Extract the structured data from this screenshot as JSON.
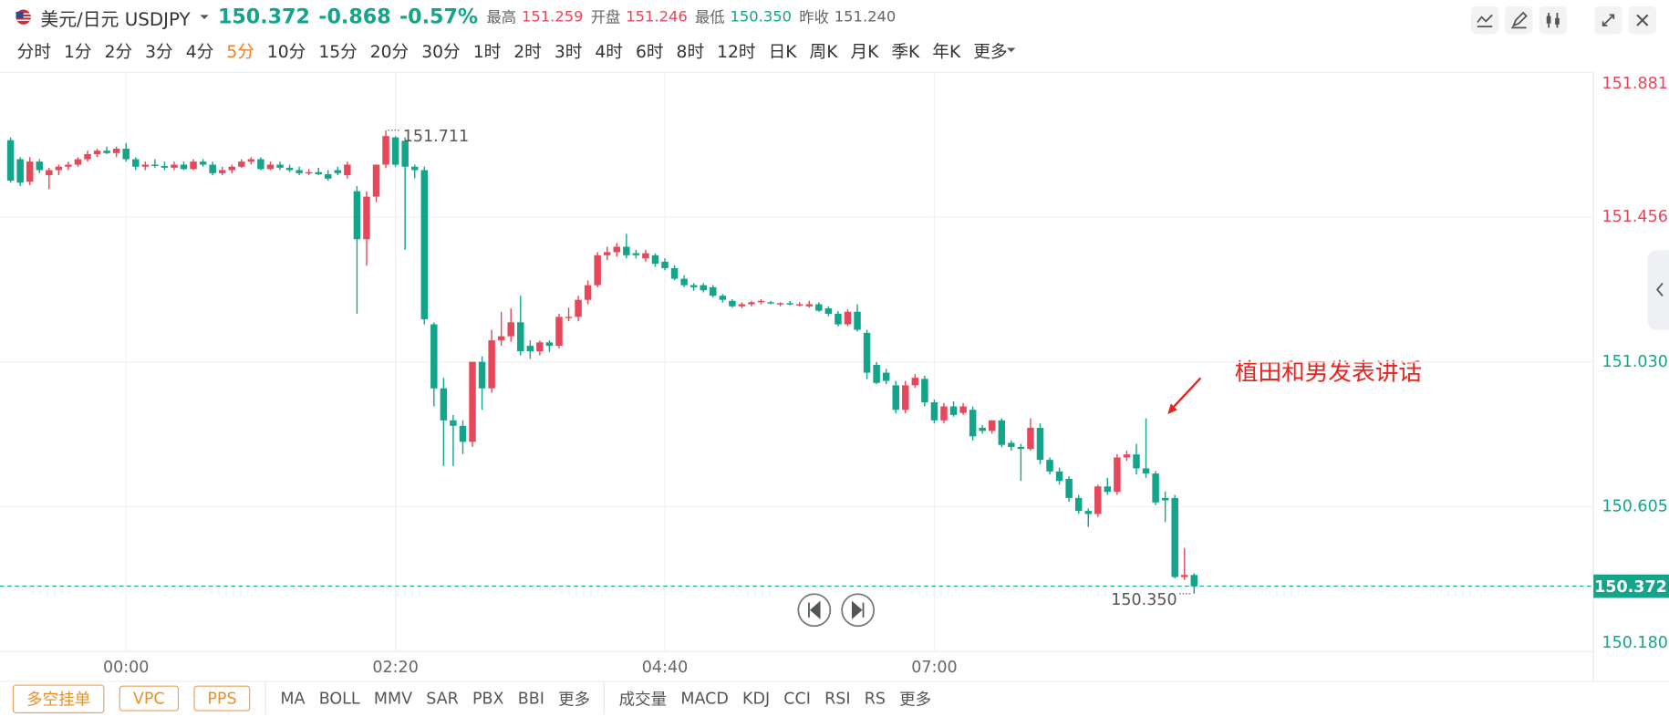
{
  "header": {
    "symbol": "美元/日元 USDJPY",
    "price": "150.372",
    "change": "-0.868",
    "change_pct": "-0.57%",
    "price_color": "#12a58a",
    "stats": [
      {
        "label": "最高",
        "value": "151.259",
        "color": "#e6475b"
      },
      {
        "label": "开盘",
        "value": "151.246",
        "color": "#e6475b"
      },
      {
        "label": "最低",
        "value": "150.350",
        "color": "#12a58a"
      },
      {
        "label": "昨收",
        "value": "151.240",
        "color": "#666666"
      }
    ]
  },
  "timeframes": [
    "分时",
    "1分",
    "2分",
    "3分",
    "4分",
    "5分",
    "10分",
    "15分",
    "20分",
    "30分",
    "1时",
    "2时",
    "3时",
    "4时",
    "6时",
    "8时",
    "12时",
    "日K",
    "周K",
    "月K",
    "季K",
    "年K",
    "更多"
  ],
  "active_timeframe": 5,
  "chart_data": {
    "type": "candlestick",
    "up_color": "#e6475b",
    "down_color": "#12a58a",
    "ohlc": [
      [
        151.682,
        151.69,
        151.557,
        151.563
      ],
      [
        151.626,
        151.632,
        151.547,
        151.557
      ],
      [
        151.56,
        151.632,
        151.55,
        151.619
      ],
      [
        151.619,
        151.626,
        151.585,
        151.594
      ],
      [
        151.579,
        151.601,
        151.538,
        151.594
      ],
      [
        151.594,
        151.61,
        151.579,
        151.604
      ],
      [
        151.604,
        151.619,
        151.594,
        151.61
      ],
      [
        151.61,
        151.632,
        151.604,
        151.626
      ],
      [
        151.626,
        151.651,
        151.619,
        151.641
      ],
      [
        151.641,
        151.657,
        151.632,
        151.651
      ],
      [
        151.651,
        151.663,
        151.641,
        151.644
      ],
      [
        151.644,
        151.663,
        151.632,
        151.657
      ],
      [
        151.657,
        151.673,
        151.619,
        151.626
      ],
      [
        151.626,
        151.632,
        151.594,
        151.604
      ],
      [
        151.604,
        151.619,
        151.594,
        151.61
      ],
      [
        151.61,
        151.626,
        151.601,
        151.606
      ],
      [
        151.606,
        151.619,
        151.594,
        151.601
      ],
      [
        151.601,
        151.619,
        151.594,
        151.61
      ],
      [
        151.61,
        151.619,
        151.594,
        151.597
      ],
      [
        151.597,
        151.626,
        151.594,
        151.619
      ],
      [
        151.619,
        151.626,
        151.604,
        151.61
      ],
      [
        151.61,
        151.619,
        151.579,
        151.585
      ],
      [
        151.585,
        151.604,
        151.579,
        151.594
      ],
      [
        151.594,
        151.61,
        151.585,
        151.604
      ],
      [
        151.604,
        151.626,
        151.601,
        151.619
      ],
      [
        151.619,
        151.632,
        151.61,
        151.626
      ],
      [
        151.626,
        151.632,
        151.594,
        151.597
      ],
      [
        151.597,
        151.619,
        151.594,
        151.61
      ],
      [
        151.61,
        151.619,
        151.594,
        151.601
      ],
      [
        151.601,
        151.61,
        151.588,
        151.594
      ],
      [
        151.594,
        151.604,
        151.579,
        151.585
      ],
      [
        151.585,
        151.597,
        151.579,
        151.588
      ],
      [
        151.588,
        151.601,
        151.579,
        151.582
      ],
      [
        151.582,
        151.594,
        151.563,
        151.569
      ],
      [
        151.594,
        151.604,
        151.579,
        151.585
      ],
      [
        151.579,
        151.619,
        151.569,
        151.61
      ],
      [
        151.532,
        151.547,
        151.172,
        151.391
      ],
      [
        151.391,
        151.532,
        151.313,
        151.516
      ],
      [
        151.516,
        151.61,
        151.5,
        151.61
      ],
      [
        151.61,
        151.711,
        151.6,
        151.694
      ],
      [
        151.69,
        151.694,
        151.604,
        151.61
      ],
      [
        151.68,
        151.69,
        151.36,
        151.604
      ],
      [
        151.604,
        151.61,
        151.57,
        151.594
      ],
      [
        151.594,
        151.604,
        151.141,
        151.156
      ],
      [
        151.141,
        151.147,
        150.9,
        150.953
      ],
      [
        150.953,
        150.984,
        150.725,
        150.859
      ],
      [
        150.859,
        150.875,
        150.725,
        150.843
      ],
      [
        150.843,
        150.859,
        150.76,
        150.796
      ],
      [
        150.796,
        151.031,
        150.781,
        151.031
      ],
      [
        151.031,
        151.047,
        150.89,
        150.953
      ],
      [
        150.953,
        151.125,
        150.94,
        151.094
      ],
      [
        151.094,
        151.178,
        151.078,
        151.106
      ],
      [
        151.106,
        151.188,
        151.09,
        151.147
      ],
      [
        151.147,
        151.225,
        151.05,
        151.062
      ],
      [
        151.078,
        151.094,
        151.04,
        151.062
      ],
      [
        151.062,
        151.094,
        151.05,
        151.088
      ],
      [
        151.088,
        151.094,
        151.06,
        151.078
      ],
      [
        151.078,
        151.172,
        151.07,
        151.163
      ],
      [
        151.16,
        151.19,
        151.15,
        151.163
      ],
      [
        151.163,
        151.225,
        151.15,
        151.213
      ],
      [
        151.213,
        151.27,
        151.2,
        151.256
      ],
      [
        151.256,
        151.353,
        151.25,
        151.344
      ],
      [
        151.344,
        151.369,
        151.33,
        151.353
      ],
      [
        151.353,
        151.38,
        151.34,
        151.369
      ],
      [
        151.369,
        151.407,
        151.335,
        151.344
      ],
      [
        151.35,
        151.36,
        151.335,
        151.344
      ],
      [
        151.335,
        151.36,
        151.325,
        151.35
      ],
      [
        151.344,
        151.35,
        151.31,
        151.319
      ],
      [
        151.325,
        151.335,
        151.3,
        151.306
      ],
      [
        151.306,
        151.315,
        151.27,
        151.275
      ],
      [
        151.275,
        151.285,
        151.25,
        151.256
      ],
      [
        151.256,
        151.262,
        151.24,
        151.25
      ],
      [
        151.256,
        151.262,
        151.235,
        151.241
      ],
      [
        151.25,
        151.256,
        151.22,
        151.225
      ],
      [
        151.225,
        151.23,
        151.205,
        151.213
      ],
      [
        151.21,
        151.215,
        151.19,
        151.194
      ],
      [
        151.194,
        151.206,
        151.188,
        151.2
      ],
      [
        151.2,
        151.21,
        151.194,
        151.206
      ],
      [
        151.206,
        151.215,
        151.2,
        151.21
      ],
      [
        151.206,
        151.21,
        151.2,
        151.203
      ],
      [
        151.2,
        151.206,
        151.194,
        151.203
      ],
      [
        151.203,
        151.21,
        151.197,
        151.2
      ],
      [
        151.2,
        151.206,
        151.194,
        151.2
      ],
      [
        151.194,
        151.21,
        151.19,
        151.2
      ],
      [
        151.2,
        151.206,
        151.178,
        151.181
      ],
      [
        151.188,
        151.194,
        151.165,
        151.172
      ],
      [
        151.172,
        151.18,
        151.135,
        151.141
      ],
      [
        151.141,
        151.185,
        151.135,
        151.178
      ],
      [
        151.178,
        151.2,
        151.12,
        151.125
      ],
      [
        151.116,
        151.125,
        150.98,
        150.999
      ],
      [
        151.022,
        151.03,
        150.965,
        150.969
      ],
      [
        150.999,
        151.01,
        150.965,
        150.975
      ],
      [
        150.962,
        150.975,
        150.88,
        150.89
      ],
      [
        150.89,
        150.975,
        150.88,
        150.962
      ],
      [
        150.962,
        150.995,
        150.955,
        150.984
      ],
      [
        150.981,
        150.99,
        150.9,
        150.912
      ],
      [
        150.912,
        150.92,
        150.85,
        150.859
      ],
      [
        150.859,
        150.91,
        150.85,
        150.9
      ],
      [
        150.9,
        150.915,
        150.87,
        150.875
      ],
      [
        150.881,
        150.91,
        150.875,
        150.9
      ],
      [
        150.89,
        150.9,
        150.8,
        150.812
      ],
      [
        150.837,
        150.845,
        150.82,
        150.828
      ],
      [
        150.828,
        150.86,
        150.82,
        150.859
      ],
      [
        150.859,
        150.865,
        150.78,
        150.787
      ],
      [
        150.793,
        150.8,
        150.77,
        150.781
      ],
      [
        150.781,
        150.79,
        150.681,
        150.775
      ],
      [
        150.775,
        150.865,
        150.77,
        150.837
      ],
      [
        150.837,
        150.85,
        150.73,
        150.743
      ],
      [
        150.743,
        150.75,
        150.7,
        150.709
      ],
      [
        150.709,
        150.72,
        150.67,
        150.681
      ],
      [
        150.687,
        150.695,
        150.62,
        150.631
      ],
      [
        150.631,
        150.64,
        150.585,
        150.593
      ],
      [
        150.593,
        150.6,
        150.546,
        150.584
      ],
      [
        150.584,
        150.67,
        150.575,
        150.665
      ],
      [
        150.665,
        150.69,
        150.64,
        150.649
      ],
      [
        150.649,
        150.76,
        150.64,
        150.75
      ],
      [
        150.75,
        150.77,
        150.74,
        150.759
      ],
      [
        150.759,
        150.79,
        150.7,
        150.718
      ],
      [
        150.718,
        150.865,
        150.69,
        150.703
      ],
      [
        150.703,
        150.71,
        150.61,
        150.618
      ],
      [
        150.631,
        150.65,
        150.56,
        150.624
      ],
      [
        150.631,
        150.64,
        150.395,
        150.399
      ],
      [
        150.399,
        150.484,
        150.39,
        150.405
      ],
      [
        150.405,
        150.41,
        150.35,
        150.372
      ]
    ],
    "xlim": [
      -1.1,
      164.5
    ],
    "xticks": [
      {
        "value": 12,
        "label": "00:00"
      },
      {
        "value": 40,
        "label": "02:20"
      },
      {
        "value": 68,
        "label": "04:40"
      },
      {
        "value": 96,
        "label": "07:00"
      }
    ],
    "ylim": [
      150.18,
      151.881
    ],
    "yticks": [
      151.881,
      151.456,
      {
        "value": 151.03,
        "label": "151.030"
      },
      150.605,
      {
        "value": 150.18,
        "label": "150.180"
      }
    ],
    "ytick_colors": [
      "#e6475b",
      "#e6475b",
      "#12a58a",
      "#12a58a",
      "#12a58a"
    ],
    "grid": true,
    "last_price": 150.372,
    "high_marker": 151.711,
    "low_marker": {
      "value": 150.35,
      "label": "150.350"
    },
    "annotation": "植田和男发表讲话",
    "annotation_color": "#e8231f"
  },
  "toolbar": {
    "buttons": [
      "多空挂单",
      "VPC",
      "PPS"
    ],
    "main_indicators": [
      "MA",
      "BOLL",
      "MMV",
      "SAR",
      "PBX",
      "BBI",
      "更多"
    ],
    "sub_indicators": [
      "成交量",
      "MACD",
      "KDJ",
      "CCI",
      "RSI",
      "RS",
      "更多"
    ]
  }
}
